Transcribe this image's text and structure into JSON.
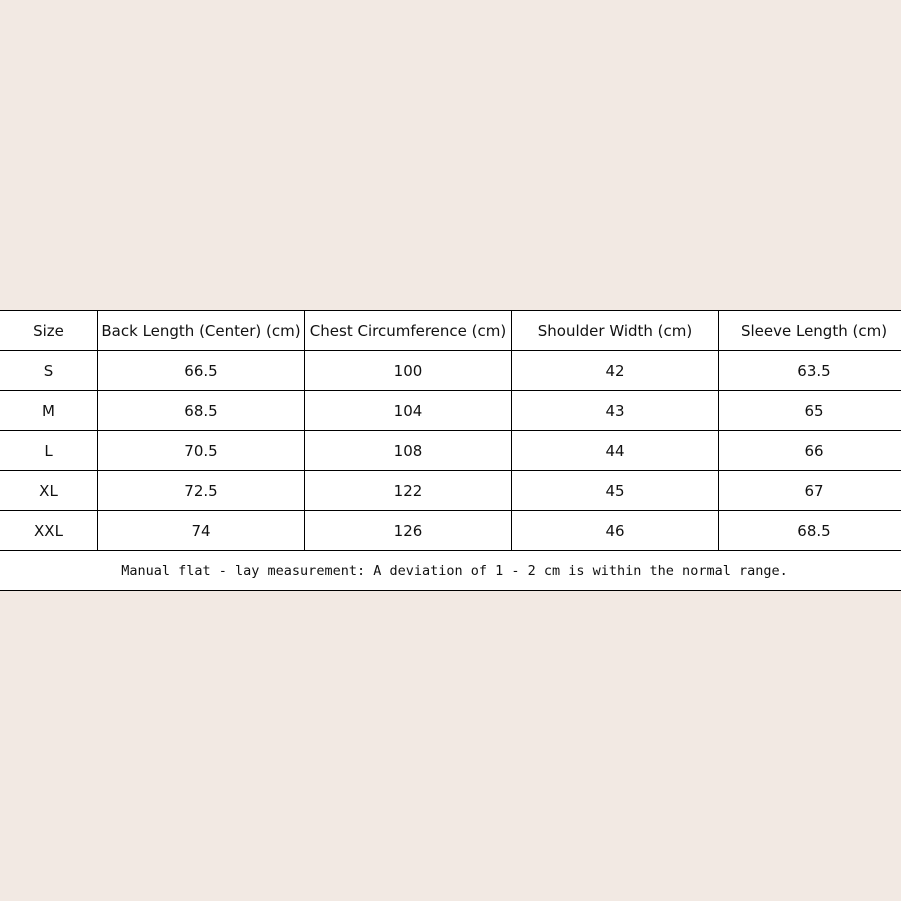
{
  "table": {
    "headers": [
      "Size",
      "Back Length (Center) (cm)",
      "Chest Circumference (cm)",
      "Shoulder Width (cm)",
      "Sleeve Length (cm)"
    ],
    "rows": [
      [
        "S",
        "66.5",
        "100",
        "42",
        "63.5"
      ],
      [
        "M",
        "68.5",
        "104",
        "43",
        "65"
      ],
      [
        "L",
        "70.5",
        "108",
        "44",
        "66"
      ],
      [
        "XL",
        "72.5",
        "122",
        "45",
        "67"
      ],
      [
        "XXL",
        "74",
        "126",
        "46",
        "68.5"
      ]
    ],
    "note": "Manual flat - lay measurement: A deviation of 1 - 2 cm is within the normal range."
  }
}
